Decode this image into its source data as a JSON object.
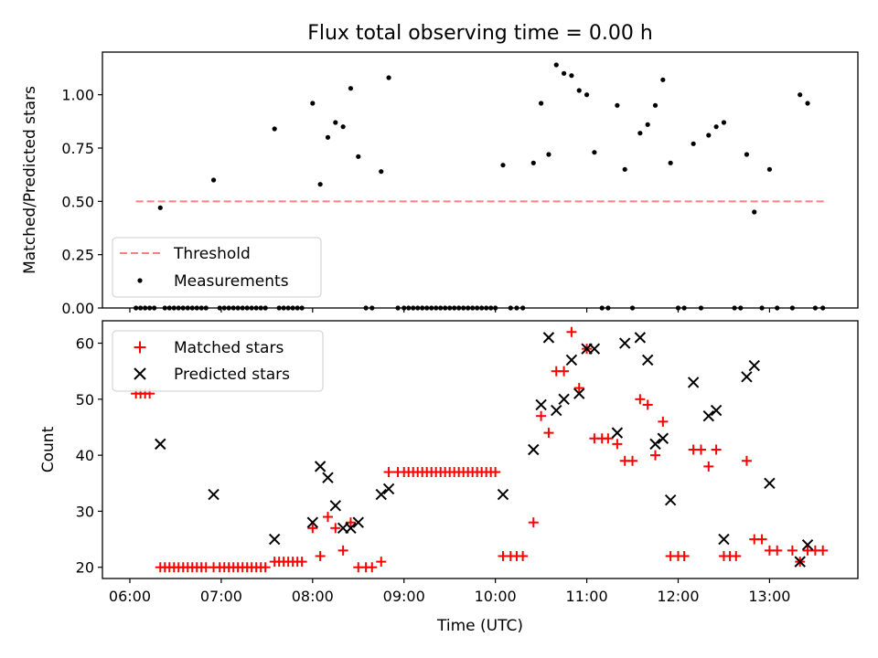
{
  "chart_data": [
    {
      "type": "scatter",
      "title": "Flux total observing time = 0.00 h",
      "xlabel": "",
      "ylabel": "Matched/Predicted stars",
      "xlim": [
        "05:42",
        "13:58"
      ],
      "ylim": [
        0,
        1.2
      ],
      "yticks": [
        "0.00",
        "0.25",
        "0.50",
        "0.75",
        "1.00"
      ],
      "legend": "lower-left",
      "threshold": {
        "name": "Threshold",
        "value": 0.5,
        "x_range": [
          "06:04",
          "13:36"
        ],
        "color": "#ff7f7f",
        "style": "dashed"
      },
      "series": [
        {
          "name": "Measurements",
          "color": "#000000",
          "marker": "dot",
          "points": [
            [
              "06:04",
              0
            ],
            [
              "06:07",
              0
            ],
            [
              "06:10",
              0
            ],
            [
              "06:13",
              0
            ],
            [
              "06:16",
              0
            ],
            [
              "06:20",
              0.47
            ],
            [
              "06:23",
              0
            ],
            [
              "06:26",
              0
            ],
            [
              "06:29",
              0
            ],
            [
              "06:32",
              0
            ],
            [
              "06:35",
              0
            ],
            [
              "06:38",
              0
            ],
            [
              "06:41",
              0
            ],
            [
              "06:44",
              0
            ],
            [
              "06:47",
              0
            ],
            [
              "06:50",
              0
            ],
            [
              "06:55",
              0.6
            ],
            [
              "06:59",
              0
            ],
            [
              "07:02",
              0
            ],
            [
              "07:05",
              0
            ],
            [
              "07:08",
              0
            ],
            [
              "07:11",
              0
            ],
            [
              "07:14",
              0
            ],
            [
              "07:17",
              0
            ],
            [
              "07:20",
              0
            ],
            [
              "07:23",
              0
            ],
            [
              "07:26",
              0
            ],
            [
              "07:29",
              0
            ],
            [
              "07:35",
              0.84
            ],
            [
              "07:38",
              0
            ],
            [
              "07:41",
              0
            ],
            [
              "07:44",
              0
            ],
            [
              "07:47",
              0
            ],
            [
              "07:50",
              0
            ],
            [
              "07:53",
              0
            ],
            [
              "08:00",
              0.96
            ],
            [
              "08:05",
              0.58
            ],
            [
              "08:10",
              0.8
            ],
            [
              "08:15",
              0.87
            ],
            [
              "08:20",
              0.85
            ],
            [
              "08:25",
              1.03
            ],
            [
              "08:30",
              0.71
            ],
            [
              "08:35",
              0
            ],
            [
              "08:39",
              0
            ],
            [
              "08:45",
              0.64
            ],
            [
              "08:50",
              1.08
            ],
            [
              "08:56",
              0
            ],
            [
              "09:00",
              0
            ],
            [
              "09:03",
              0
            ],
            [
              "09:06",
              0
            ],
            [
              "09:09",
              0
            ],
            [
              "09:12",
              0
            ],
            [
              "09:15",
              0
            ],
            [
              "09:18",
              0
            ],
            [
              "09:21",
              0
            ],
            [
              "09:24",
              0
            ],
            [
              "09:27",
              0
            ],
            [
              "09:30",
              0
            ],
            [
              "09:33",
              0
            ],
            [
              "09:36",
              0
            ],
            [
              "09:39",
              0
            ],
            [
              "09:42",
              0
            ],
            [
              "09:45",
              0
            ],
            [
              "09:48",
              0
            ],
            [
              "09:51",
              0
            ],
            [
              "09:54",
              0
            ],
            [
              "09:57",
              0
            ],
            [
              "10:00",
              0
            ],
            [
              "10:05",
              0.67
            ],
            [
              "10:10",
              0
            ],
            [
              "10:14",
              0
            ],
            [
              "10:18",
              0
            ],
            [
              "10:25",
              0.68
            ],
            [
              "10:30",
              0.96
            ],
            [
              "10:35",
              0.72
            ],
            [
              "10:40",
              1.14
            ],
            [
              "10:45",
              1.1
            ],
            [
              "10:50",
              1.09
            ],
            [
              "10:55",
              1.02
            ],
            [
              "11:00",
              1.0
            ],
            [
              "11:05",
              0.73
            ],
            [
              "11:10",
              0
            ],
            [
              "11:14",
              0
            ],
            [
              "11:20",
              0.95
            ],
            [
              "11:25",
              0.65
            ],
            [
              "11:30",
              0
            ],
            [
              "11:35",
              0.82
            ],
            [
              "11:40",
              0.86
            ],
            [
              "11:45",
              0.95
            ],
            [
              "11:50",
              1.07
            ],
            [
              "11:55",
              0.68
            ],
            [
              "12:00",
              0
            ],
            [
              "12:04",
              0
            ],
            [
              "12:10",
              0.77
            ],
            [
              "12:15",
              0
            ],
            [
              "12:20",
              0.81
            ],
            [
              "12:25",
              0.85
            ],
            [
              "12:30",
              0.87
            ],
            [
              "12:37",
              0
            ],
            [
              "12:41",
              0
            ],
            [
              "12:45",
              0.72
            ],
            [
              "12:50",
              0.45
            ],
            [
              "12:55",
              0
            ],
            [
              "13:00",
              0.65
            ],
            [
              "13:05",
              0
            ],
            [
              "13:15",
              0
            ],
            [
              "13:20",
              1.0
            ],
            [
              "13:25",
              0.96
            ],
            [
              "13:30",
              0
            ],
            [
              "13:35",
              0
            ]
          ]
        }
      ]
    },
    {
      "type": "scatter",
      "title": "",
      "xlabel": "Time (UTC)",
      "ylabel": "Count",
      "xlim": [
        "05:42",
        "13:58"
      ],
      "ylim": [
        18,
        64
      ],
      "xticks": [
        "06:00",
        "07:00",
        "08:00",
        "09:00",
        "10:00",
        "11:00",
        "12:00",
        "13:00"
      ],
      "yticks": [
        "20",
        "30",
        "40",
        "50",
        "60"
      ],
      "legend": "top-left",
      "series": [
        {
          "name": "Matched stars",
          "color": "#ff0000",
          "marker": "plus",
          "points": [
            [
              "06:04",
              51
            ],
            [
              "06:07",
              51
            ],
            [
              "06:10",
              51
            ],
            [
              "06:13",
              51
            ],
            [
              "06:20",
              20
            ],
            [
              "06:23",
              20
            ],
            [
              "06:26",
              20
            ],
            [
              "06:29",
              20
            ],
            [
              "06:32",
              20
            ],
            [
              "06:35",
              20
            ],
            [
              "06:38",
              20
            ],
            [
              "06:41",
              20
            ],
            [
              "06:44",
              20
            ],
            [
              "06:47",
              20
            ],
            [
              "06:50",
              20
            ],
            [
              "06:55",
              20
            ],
            [
              "06:59",
              20
            ],
            [
              "07:02",
              20
            ],
            [
              "07:05",
              20
            ],
            [
              "07:08",
              20
            ],
            [
              "07:11",
              20
            ],
            [
              "07:14",
              20
            ],
            [
              "07:17",
              20
            ],
            [
              "07:20",
              20
            ],
            [
              "07:23",
              20
            ],
            [
              "07:26",
              20
            ],
            [
              "07:29",
              20
            ],
            [
              "07:35",
              21
            ],
            [
              "07:38",
              21
            ],
            [
              "07:41",
              21
            ],
            [
              "07:44",
              21
            ],
            [
              "07:47",
              21
            ],
            [
              "07:50",
              21
            ],
            [
              "07:53",
              21
            ],
            [
              "08:00",
              27
            ],
            [
              "08:05",
              22
            ],
            [
              "08:10",
              29
            ],
            [
              "08:15",
              27
            ],
            [
              "08:20",
              23
            ],
            [
              "08:25",
              28
            ],
            [
              "08:30",
              20
            ],
            [
              "08:35",
              20
            ],
            [
              "08:39",
              20
            ],
            [
              "08:45",
              21
            ],
            [
              "08:50",
              37
            ],
            [
              "08:56",
              37
            ],
            [
              "09:00",
              37
            ],
            [
              "09:03",
              37
            ],
            [
              "09:06",
              37
            ],
            [
              "09:09",
              37
            ],
            [
              "09:12",
              37
            ],
            [
              "09:15",
              37
            ],
            [
              "09:18",
              37
            ],
            [
              "09:21",
              37
            ],
            [
              "09:24",
              37
            ],
            [
              "09:27",
              37
            ],
            [
              "09:30",
              37
            ],
            [
              "09:33",
              37
            ],
            [
              "09:36",
              37
            ],
            [
              "09:39",
              37
            ],
            [
              "09:42",
              37
            ],
            [
              "09:45",
              37
            ],
            [
              "09:48",
              37
            ],
            [
              "09:51",
              37
            ],
            [
              "09:54",
              37
            ],
            [
              "09:57",
              37
            ],
            [
              "10:00",
              37
            ],
            [
              "10:05",
              22
            ],
            [
              "10:10",
              22
            ],
            [
              "10:14",
              22
            ],
            [
              "10:18",
              22
            ],
            [
              "10:25",
              28
            ],
            [
              "10:30",
              47
            ],
            [
              "10:35",
              44
            ],
            [
              "10:40",
              55
            ],
            [
              "10:45",
              55
            ],
            [
              "10:50",
              62
            ],
            [
              "10:55",
              52
            ],
            [
              "11:00",
              59
            ],
            [
              "11:05",
              43
            ],
            [
              "11:10",
              43
            ],
            [
              "11:14",
              43
            ],
            [
              "11:20",
              42
            ],
            [
              "11:25",
              39
            ],
            [
              "11:30",
              39
            ],
            [
              "11:35",
              50
            ],
            [
              "11:40",
              49
            ],
            [
              "11:45",
              40
            ],
            [
              "11:50",
              46
            ],
            [
              "11:55",
              22
            ],
            [
              "12:00",
              22
            ],
            [
              "12:04",
              22
            ],
            [
              "12:10",
              41
            ],
            [
              "12:15",
              41
            ],
            [
              "12:20",
              38
            ],
            [
              "12:25",
              41
            ],
            [
              "12:30",
              22
            ],
            [
              "12:34",
              22
            ],
            [
              "12:38",
              22
            ],
            [
              "12:45",
              39
            ],
            [
              "12:50",
              25
            ],
            [
              "12:55",
              25
            ],
            [
              "13:00",
              23
            ],
            [
              "13:05",
              23
            ],
            [
              "13:15",
              23
            ],
            [
              "13:20",
              21
            ],
            [
              "13:25",
              23
            ],
            [
              "13:30",
              23
            ],
            [
              "13:35",
              23
            ]
          ]
        },
        {
          "name": "Predicted stars",
          "color": "#000000",
          "marker": "cross",
          "points": [
            [
              "06:20",
              42
            ],
            [
              "06:55",
              33
            ],
            [
              "07:35",
              25
            ],
            [
              "08:00",
              28
            ],
            [
              "08:05",
              38
            ],
            [
              "08:10",
              36
            ],
            [
              "08:15",
              31
            ],
            [
              "08:20",
              27
            ],
            [
              "08:25",
              27
            ],
            [
              "08:30",
              28
            ],
            [
              "08:45",
              33
            ],
            [
              "08:50",
              34
            ],
            [
              "10:05",
              33
            ],
            [
              "10:25",
              41
            ],
            [
              "10:30",
              49
            ],
            [
              "10:35",
              61
            ],
            [
              "10:40",
              48
            ],
            [
              "10:45",
              50
            ],
            [
              "10:50",
              57
            ],
            [
              "10:55",
              51
            ],
            [
              "11:00",
              59
            ],
            [
              "11:05",
              59
            ],
            [
              "11:20",
              44
            ],
            [
              "11:25",
              60
            ],
            [
              "11:35",
              61
            ],
            [
              "11:40",
              57
            ],
            [
              "11:45",
              42
            ],
            [
              "11:50",
              43
            ],
            [
              "11:55",
              32
            ],
            [
              "12:10",
              53
            ],
            [
              "12:20",
              47
            ],
            [
              "12:25",
              48
            ],
            [
              "12:30",
              25
            ],
            [
              "12:45",
              54
            ],
            [
              "12:50",
              56
            ],
            [
              "13:00",
              35
            ],
            [
              "13:20",
              21
            ],
            [
              "13:25",
              24
            ]
          ]
        }
      ]
    }
  ]
}
